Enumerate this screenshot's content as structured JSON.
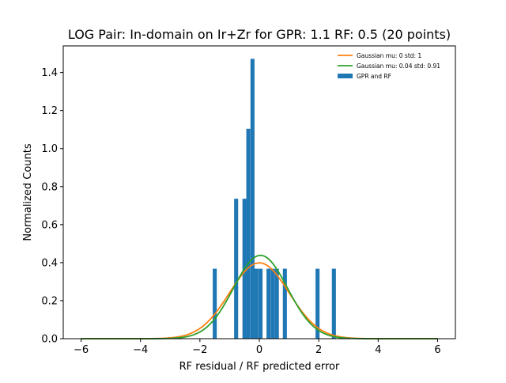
{
  "chart_data": {
    "type": "histogram",
    "title": "LOG Pair: In-domain on Ir+Zr for GPR: 1.1 RF: 0.5 (20 points)",
    "xlabel": "RF residual / RF predicted error",
    "ylabel": "Normalized Counts",
    "xlim": [
      -6.6,
      6.6
    ],
    "ylim": [
      0,
      1.54
    ],
    "xticks": [
      -6,
      -4,
      -2,
      0,
      2,
      4,
      6
    ],
    "xtick_labels": [
      "−6",
      "−4",
      "−2",
      "0",
      "2",
      "4",
      "6"
    ],
    "yticks": [
      0.0,
      0.2,
      0.4,
      0.6,
      0.8,
      1.0,
      1.2,
      1.4
    ],
    "ytick_labels": [
      "0.0",
      "0.2",
      "0.4",
      "0.6",
      "0.8",
      "1.0",
      "1.2",
      "1.4"
    ],
    "bin_width": 0.136,
    "bars": [
      {
        "x": -1.5,
        "height": 0.368
      },
      {
        "x": -0.78,
        "height": 0.736
      },
      {
        "x": -0.5,
        "height": 0.736
      },
      {
        "x": -0.37,
        "height": 1.104
      },
      {
        "x": -0.23,
        "height": 1.472
      },
      {
        "x": -0.1,
        "height": 0.368
      },
      {
        "x": 0.04,
        "height": 0.368
      },
      {
        "x": 0.31,
        "height": 0.368
      },
      {
        "x": 0.45,
        "height": 0.368
      },
      {
        "x": 0.59,
        "height": 0.368
      },
      {
        "x": 0.86,
        "height": 0.368
      },
      {
        "x": 1.96,
        "height": 0.368
      },
      {
        "x": 2.51,
        "height": 0.368
      }
    ],
    "series": [
      {
        "name": "Gaussian mu: 0 std: 1",
        "kind": "line",
        "mu": 0,
        "std": 1,
        "color": "#ff7f0e"
      },
      {
        "name": "Gaussian mu: 0.04 std: 0.91",
        "kind": "line",
        "mu": 0.04,
        "std": 0.91,
        "color": "#2ca02c"
      },
      {
        "name": "GPR and RF",
        "kind": "bar",
        "color": "#1f77b4"
      }
    ],
    "line_x_range": [
      -6,
      6
    ],
    "legend_position": "top-right",
    "grid": false
  }
}
